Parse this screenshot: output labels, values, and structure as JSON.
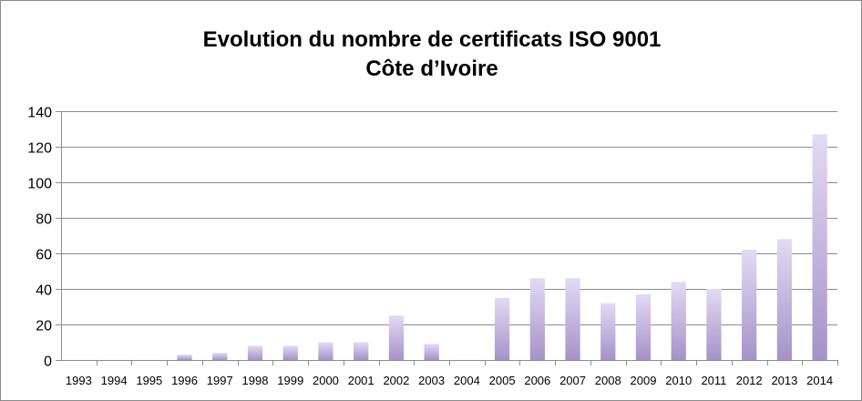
{
  "chart_data": {
    "type": "bar",
    "title": "Evolution du nombre de certificats ISO 9001",
    "subtitle": "Côte d’Ivoire",
    "xlabel": "",
    "ylabel": "",
    "categories": [
      "1993",
      "1994",
      "1995",
      "1996",
      "1997",
      "1998",
      "1999",
      "2000",
      "2001",
      "2002",
      "2003",
      "2004",
      "2005",
      "2006",
      "2007",
      "2008",
      "2009",
      "2010",
      "2011",
      "2012",
      "2013",
      "2014"
    ],
    "values": [
      0,
      0,
      0,
      3,
      4,
      8,
      8,
      10,
      10,
      25,
      9,
      0,
      35,
      46,
      46,
      32,
      37,
      44,
      40,
      62,
      68,
      127
    ],
    "ylim": [
      0,
      140
    ],
    "yticks": [
      "0",
      "20",
      "40",
      "60",
      "80",
      "100",
      "120",
      "140"
    ],
    "grid": true,
    "legend": "none",
    "colors": {
      "bar_light": "#e4daf4",
      "bar_dark": "#a592c8",
      "grid": "#8c8c8c"
    }
  }
}
